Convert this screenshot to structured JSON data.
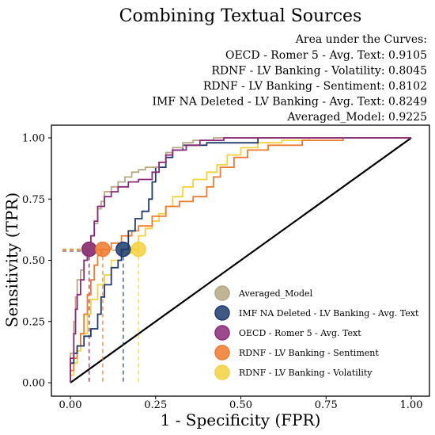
{
  "chart_data": {
    "type": "line",
    "title": "Combining Textual Sources",
    "xlabel": "1 - Specificity (FPR)",
    "ylabel": "Sensitivity (TPR)",
    "xlim": [
      0,
      1
    ],
    "ylim": [
      0,
      1
    ],
    "x_ticks": [
      "0.00",
      "0.25",
      "0.50",
      "0.75",
      "1.00"
    ],
    "y_ticks": [
      "0.00",
      "0.25",
      "0.50",
      "0.75",
      "1.00"
    ],
    "grid": false,
    "auc_header": "Area under the Curves:",
    "auc_lines": [
      "OECD - Romer 5 - Avg. Text: 0.9105",
      "RDNF - LV Banking - Volatility: 0.8045",
      "RDNF - LV Banking - Sentiment: 0.8102",
      "IMF NA Deleted - LV Banking - Avg. Text: 0.8249",
      "Averaged_Model: 0.9225"
    ],
    "legend_position": "bottom-right",
    "diagonal": [
      [
        0,
        0
      ],
      [
        1,
        1
      ]
    ],
    "series": [
      {
        "name": "Averaged_Model",
        "color": "#b5a882",
        "marker": {
          "x": 0.055,
          "y": 0.545
        },
        "points": [
          [
            0,
            0
          ],
          [
            0,
            0.12
          ],
          [
            0.01,
            0.12
          ],
          [
            0.01,
            0.25
          ],
          [
            0.015,
            0.25
          ],
          [
            0.015,
            0.35
          ],
          [
            0.02,
            0.35
          ],
          [
            0.02,
            0.42
          ],
          [
            0.03,
            0.42
          ],
          [
            0.03,
            0.46
          ],
          [
            0.04,
            0.46
          ],
          [
            0.04,
            0.5
          ],
          [
            0.05,
            0.5
          ],
          [
            0.05,
            0.545
          ],
          [
            0.06,
            0.545
          ],
          [
            0.06,
            0.6
          ],
          [
            0.07,
            0.6
          ],
          [
            0.07,
            0.65
          ],
          [
            0.08,
            0.65
          ],
          [
            0.08,
            0.71
          ],
          [
            0.09,
            0.71
          ],
          [
            0.09,
            0.74
          ],
          [
            0.1,
            0.74
          ],
          [
            0.1,
            0.78
          ],
          [
            0.12,
            0.78
          ],
          [
            0.12,
            0.8
          ],
          [
            0.14,
            0.8
          ],
          [
            0.14,
            0.82
          ],
          [
            0.16,
            0.82
          ],
          [
            0.16,
            0.84
          ],
          [
            0.18,
            0.84
          ],
          [
            0.18,
            0.86
          ],
          [
            0.2,
            0.86
          ],
          [
            0.2,
            0.87
          ],
          [
            0.22,
            0.87
          ],
          [
            0.22,
            0.88
          ],
          [
            0.26,
            0.88
          ],
          [
            0.26,
            0.9
          ],
          [
            0.28,
            0.9
          ],
          [
            0.28,
            0.94
          ],
          [
            0.3,
            0.94
          ],
          [
            0.3,
            0.96
          ],
          [
            0.33,
            0.96
          ],
          [
            0.33,
            0.98
          ],
          [
            0.36,
            0.98
          ],
          [
            0.36,
            0.99
          ],
          [
            0.42,
            0.99
          ],
          [
            0.42,
            1
          ],
          [
            1,
            1
          ]
        ]
      },
      {
        "name": "IMF NA Deleted - LV Banking - Avg. Text",
        "color": "#1f3b6e",
        "marker": {
          "x": 0.155,
          "y": 0.545
        },
        "points": [
          [
            0,
            0
          ],
          [
            0,
            0.08
          ],
          [
            0.01,
            0.08
          ],
          [
            0.01,
            0.12
          ],
          [
            0.02,
            0.12
          ],
          [
            0.02,
            0.15
          ],
          [
            0.04,
            0.15
          ],
          [
            0.04,
            0.19
          ],
          [
            0.06,
            0.19
          ],
          [
            0.06,
            0.22
          ],
          [
            0.08,
            0.22
          ],
          [
            0.08,
            0.28
          ],
          [
            0.09,
            0.28
          ],
          [
            0.09,
            0.35
          ],
          [
            0.1,
            0.35
          ],
          [
            0.1,
            0.4
          ],
          [
            0.12,
            0.4
          ],
          [
            0.12,
            0.47
          ],
          [
            0.14,
            0.47
          ],
          [
            0.14,
            0.5
          ],
          [
            0.15,
            0.5
          ],
          [
            0.15,
            0.545
          ],
          [
            0.17,
            0.545
          ],
          [
            0.17,
            0.62
          ],
          [
            0.19,
            0.62
          ],
          [
            0.19,
            0.67
          ],
          [
            0.21,
            0.67
          ],
          [
            0.21,
            0.7
          ],
          [
            0.23,
            0.7
          ],
          [
            0.23,
            0.75
          ],
          [
            0.24,
            0.75
          ],
          [
            0.24,
            0.82
          ],
          [
            0.25,
            0.82
          ],
          [
            0.25,
            0.88
          ],
          [
            0.28,
            0.88
          ],
          [
            0.28,
            0.92
          ],
          [
            0.3,
            0.92
          ],
          [
            0.3,
            0.95
          ],
          [
            0.33,
            0.95
          ],
          [
            0.33,
            0.97
          ],
          [
            0.4,
            0.97
          ],
          [
            0.4,
            0.98
          ],
          [
            0.55,
            0.98
          ],
          [
            0.55,
            1
          ],
          [
            1,
            1
          ]
        ]
      },
      {
        "name": "OECD - Romer 5 - Avg. Text",
        "color": "#8b2a78",
        "marker": {
          "x": 0.055,
          "y": 0.545
        },
        "points": [
          [
            0,
            0
          ],
          [
            0,
            0.1
          ],
          [
            0.01,
            0.1
          ],
          [
            0.01,
            0.2
          ],
          [
            0.015,
            0.2
          ],
          [
            0.015,
            0.3
          ],
          [
            0.02,
            0.3
          ],
          [
            0.02,
            0.36
          ],
          [
            0.03,
            0.36
          ],
          [
            0.03,
            0.42
          ],
          [
            0.04,
            0.42
          ],
          [
            0.04,
            0.5
          ],
          [
            0.05,
            0.5
          ],
          [
            0.05,
            0.545
          ],
          [
            0.06,
            0.545
          ],
          [
            0.06,
            0.6
          ],
          [
            0.07,
            0.6
          ],
          [
            0.07,
            0.66
          ],
          [
            0.08,
            0.66
          ],
          [
            0.08,
            0.72
          ],
          [
            0.1,
            0.72
          ],
          [
            0.1,
            0.76
          ],
          [
            0.12,
            0.76
          ],
          [
            0.12,
            0.78
          ],
          [
            0.14,
            0.78
          ],
          [
            0.14,
            0.8
          ],
          [
            0.17,
            0.8
          ],
          [
            0.17,
            0.82
          ],
          [
            0.2,
            0.82
          ],
          [
            0.2,
            0.83
          ],
          [
            0.24,
            0.83
          ],
          [
            0.24,
            0.86
          ],
          [
            0.26,
            0.86
          ],
          [
            0.26,
            0.9
          ],
          [
            0.28,
            0.9
          ],
          [
            0.28,
            0.93
          ],
          [
            0.3,
            0.93
          ],
          [
            0.3,
            0.95
          ],
          [
            0.34,
            0.95
          ],
          [
            0.34,
            0.97
          ],
          [
            0.38,
            0.97
          ],
          [
            0.38,
            0.99
          ],
          [
            0.45,
            0.99
          ],
          [
            0.45,
            1
          ],
          [
            1,
            1
          ]
        ]
      },
      {
        "name": "RDNF - LV Banking - Sentiment",
        "color": "#f07a2e",
        "marker": {
          "x": 0.095,
          "y": 0.545
        },
        "points": [
          [
            0,
            0
          ],
          [
            0,
            0.05
          ],
          [
            0.01,
            0.05
          ],
          [
            0.01,
            0.1
          ],
          [
            0.02,
            0.1
          ],
          [
            0.02,
            0.15
          ],
          [
            0.03,
            0.15
          ],
          [
            0.03,
            0.2
          ],
          [
            0.04,
            0.2
          ],
          [
            0.04,
            0.28
          ],
          [
            0.05,
            0.28
          ],
          [
            0.05,
            0.36
          ],
          [
            0.06,
            0.36
          ],
          [
            0.06,
            0.42
          ],
          [
            0.07,
            0.42
          ],
          [
            0.07,
            0.48
          ],
          [
            0.08,
            0.48
          ],
          [
            0.08,
            0.52
          ],
          [
            0.09,
            0.52
          ],
          [
            0.09,
            0.545
          ],
          [
            0.12,
            0.545
          ],
          [
            0.12,
            0.57
          ],
          [
            0.15,
            0.57
          ],
          [
            0.15,
            0.6
          ],
          [
            0.18,
            0.6
          ],
          [
            0.18,
            0.62
          ],
          [
            0.2,
            0.62
          ],
          [
            0.2,
            0.64
          ],
          [
            0.24,
            0.64
          ],
          [
            0.24,
            0.68
          ],
          [
            0.28,
            0.68
          ],
          [
            0.28,
            0.72
          ],
          [
            0.32,
            0.72
          ],
          [
            0.32,
            0.74
          ],
          [
            0.36,
            0.74
          ],
          [
            0.36,
            0.76
          ],
          [
            0.4,
            0.76
          ],
          [
            0.4,
            0.8
          ],
          [
            0.42,
            0.8
          ],
          [
            0.42,
            0.84
          ],
          [
            0.44,
            0.84
          ],
          [
            0.44,
            0.88
          ],
          [
            0.48,
            0.88
          ],
          [
            0.48,
            0.92
          ],
          [
            0.52,
            0.92
          ],
          [
            0.52,
            0.95
          ],
          [
            0.58,
            0.95
          ],
          [
            0.58,
            0.97
          ],
          [
            0.68,
            0.97
          ],
          [
            0.68,
            0.99
          ],
          [
            0.8,
            0.99
          ],
          [
            0.8,
            1
          ],
          [
            1,
            1
          ]
        ]
      },
      {
        "name": "RDNF - LV Banking - Volatility",
        "color": "#f5d13f",
        "marker": {
          "x": 0.2,
          "y": 0.545
        },
        "points": [
          [
            0,
            0
          ],
          [
            0,
            0.03
          ],
          [
            0.01,
            0.03
          ],
          [
            0.01,
            0.08
          ],
          [
            0.02,
            0.08
          ],
          [
            0.02,
            0.13
          ],
          [
            0.03,
            0.13
          ],
          [
            0.03,
            0.2
          ],
          [
            0.05,
            0.2
          ],
          [
            0.05,
            0.28
          ],
          [
            0.06,
            0.28
          ],
          [
            0.06,
            0.34
          ],
          [
            0.08,
            0.34
          ],
          [
            0.08,
            0.4
          ],
          [
            0.1,
            0.4
          ],
          [
            0.1,
            0.44
          ],
          [
            0.12,
            0.44
          ],
          [
            0.12,
            0.5
          ],
          [
            0.15,
            0.5
          ],
          [
            0.15,
            0.53
          ],
          [
            0.18,
            0.53
          ],
          [
            0.18,
            0.545
          ],
          [
            0.2,
            0.545
          ],
          [
            0.2,
            0.6
          ],
          [
            0.22,
            0.6
          ],
          [
            0.22,
            0.63
          ],
          [
            0.24,
            0.63
          ],
          [
            0.24,
            0.66
          ],
          [
            0.26,
            0.66
          ],
          [
            0.26,
            0.69
          ],
          [
            0.28,
            0.69
          ],
          [
            0.28,
            0.72
          ],
          [
            0.3,
            0.72
          ],
          [
            0.3,
            0.76
          ],
          [
            0.33,
            0.76
          ],
          [
            0.33,
            0.8
          ],
          [
            0.36,
            0.8
          ],
          [
            0.36,
            0.83
          ],
          [
            0.4,
            0.83
          ],
          [
            0.4,
            0.86
          ],
          [
            0.43,
            0.86
          ],
          [
            0.43,
            0.89
          ],
          [
            0.46,
            0.89
          ],
          [
            0.46,
            0.93
          ],
          [
            0.5,
            0.93
          ],
          [
            0.5,
            0.96
          ],
          [
            0.55,
            0.96
          ],
          [
            0.55,
            0.98
          ],
          [
            0.62,
            0.98
          ],
          [
            0.62,
            0.99
          ],
          [
            0.7,
            0.99
          ],
          [
            0.7,
            1
          ],
          [
            1,
            1
          ]
        ]
      }
    ]
  }
}
